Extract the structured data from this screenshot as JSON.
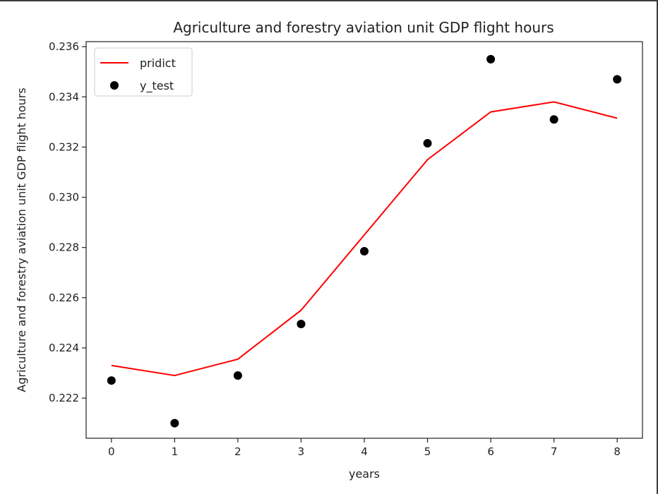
{
  "chart_data": {
    "type": "line",
    "title": "Agriculture and forestry aviation unit GDP flight hours",
    "xlabel": "years",
    "ylabel": "Agriculture and forestry aviation unit GDP flight hours",
    "xlim": [
      -0.4,
      8.4
    ],
    "ylim": [
      0.2204,
      0.2362
    ],
    "x_ticks": [
      0,
      1,
      2,
      3,
      4,
      5,
      6,
      7,
      8
    ],
    "y_ticks": [
      0.222,
      0.224,
      0.226,
      0.228,
      0.23,
      0.232,
      0.234,
      0.236
    ],
    "y_tick_labels": [
      "0.222",
      "0.224",
      "0.226",
      "0.228",
      "0.230",
      "0.232",
      "0.234",
      "0.236"
    ],
    "grid": false,
    "legend_position": "upper-left",
    "series": [
      {
        "name": "pridict",
        "kind": "line",
        "color": "#ff0000",
        "x": [
          0,
          1,
          2,
          3,
          4,
          5,
          6,
          7,
          8
        ],
        "y": [
          0.2233,
          0.2229,
          0.22355,
          0.2255,
          0.2285,
          0.2315,
          0.2334,
          0.2338,
          0.23315
        ]
      },
      {
        "name": "y_test",
        "kind": "scatter",
        "color": "#000000",
        "x": [
          0,
          1,
          2,
          3,
          4,
          5,
          6,
          7,
          8
        ],
        "y": [
          0.2227,
          0.221,
          0.2229,
          0.22495,
          0.22785,
          0.23215,
          0.2355,
          0.2331,
          0.2347
        ]
      }
    ]
  }
}
